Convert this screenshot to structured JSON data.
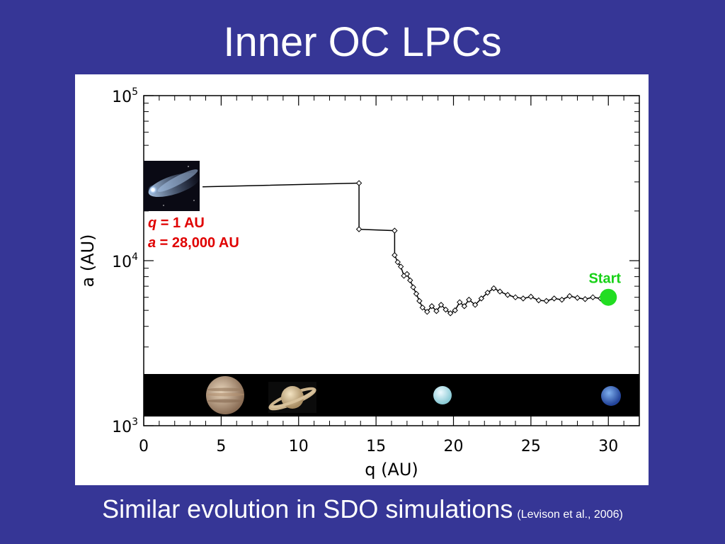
{
  "slide": {
    "title": "Inner OC LPCs",
    "footer_main": "Similar evolution in SDO simulations",
    "footer_citation": "(Levison et al., 2006)"
  },
  "chart_data": {
    "type": "line",
    "title": "",
    "xlabel": "q (AU)",
    "ylabel": "a (AU)",
    "xlim": [
      0,
      32
    ],
    "ylim": [
      1000,
      100000
    ],
    "yscale": "log",
    "x_ticks": [
      0,
      5,
      10,
      15,
      20,
      25,
      30
    ],
    "y_ticks": [
      {
        "value": 1000,
        "base": "10",
        "exp": "3"
      },
      {
        "value": 10000,
        "base": "10",
        "exp": "4"
      },
      {
        "value": 100000,
        "base": "10",
        "exp": "5"
      }
    ],
    "series": [
      {
        "marker": "diamond",
        "color": "#000000",
        "x": [
          3.8,
          13.9,
          13.9,
          16.2,
          16.2,
          16.4,
          16.6,
          16.8,
          17.0,
          17.2,
          17.4,
          17.6,
          17.8,
          18.0,
          18.3,
          18.6,
          18.9,
          19.2,
          19.5,
          19.8,
          20.1,
          20.4,
          20.7,
          21.0,
          21.4,
          21.8,
          22.2,
          22.6,
          23.0,
          23.5,
          24.0,
          24.5,
          25.0,
          25.5,
          26.0,
          26.5,
          27.0,
          27.5,
          28.0,
          28.5,
          29.0,
          29.5,
          30.0
        ],
        "y": [
          28000,
          29500,
          15500,
          15200,
          10800,
          9800,
          9200,
          8100,
          8300,
          7600,
          6900,
          6300,
          5700,
          5200,
          4900,
          5300,
          4950,
          5400,
          5050,
          4800,
          5000,
          5600,
          5300,
          5800,
          5400,
          5900,
          6400,
          6800,
          6500,
          6200,
          6000,
          5900,
          6050,
          5750,
          5700,
          5900,
          5800,
          6100,
          5950,
          5850,
          6000,
          5900,
          6000
        ]
      }
    ],
    "annotations": {
      "q_label_var": "q",
      "q_label_rest": " = 1 AU",
      "a_label_var": "a",
      "a_label_rest": " = 28,000 AU",
      "start_label": "Start",
      "start_point": {
        "x": 30.0,
        "y": 6000
      }
    },
    "decorations": {
      "comet_image": "comet-photo",
      "planet_strip": [
        "jupiter",
        "saturn",
        "uranus",
        "neptune"
      ]
    }
  }
}
